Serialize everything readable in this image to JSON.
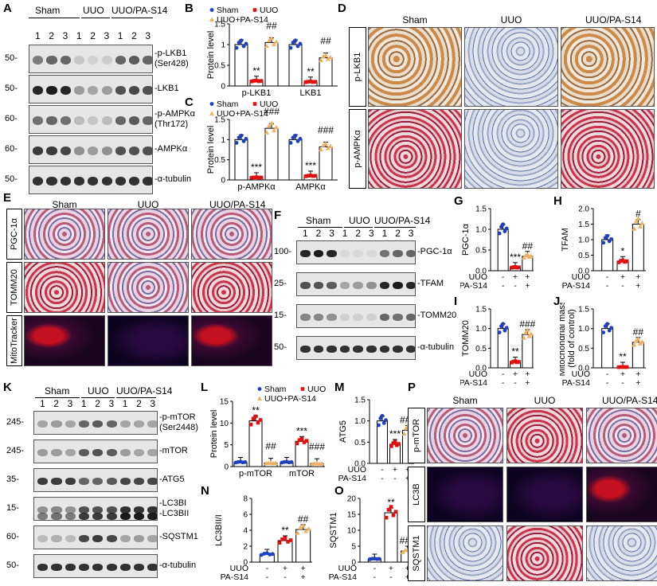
{
  "panels": {
    "A": {
      "letter": "A",
      "groups": [
        "Sham",
        "UUO",
        "UUO/PA-S14"
      ],
      "lanes": [
        "1",
        "2",
        "3",
        "1",
        "2",
        "3",
        "1",
        "2",
        "3"
      ],
      "rows": [
        {
          "mw": "50-",
          "label": "-p-LKB1",
          "label2": "(Ser428)"
        },
        {
          "mw": "50-",
          "label": "-LKB1",
          "label2": ""
        },
        {
          "mw": "60-",
          "label": "-p-AMPKα",
          "label2": "(Thr172)"
        },
        {
          "mw": "60-",
          "label": "-AMPKα",
          "label2": ""
        },
        {
          "mw": "50-",
          "label": "-α-tubulin",
          "label2": ""
        }
      ]
    },
    "B": {
      "letter": "B"
    },
    "C": {
      "letter": "C"
    },
    "D": {
      "letter": "D",
      "cols": [
        "Sham",
        "UUO",
        "UUO/PA-S14"
      ],
      "rows": [
        "p-LKB1",
        "p-AMPKα"
      ]
    },
    "E": {
      "letter": "E",
      "cols": [
        "Sham",
        "UUO",
        "UUO/PA-S14"
      ],
      "rows": [
        "PGC-1α",
        "TOMM20",
        "MitoTracker"
      ]
    },
    "F": {
      "letter": "F",
      "groups": [
        "Sham",
        "UUO",
        "UUO/PA-S14"
      ],
      "lanes": [
        "1",
        "2",
        "3",
        "1",
        "2",
        "3",
        "1",
        "2",
        "3"
      ],
      "rows": [
        {
          "mw": "100-",
          "label": "-PGC-1α"
        },
        {
          "mw": "25-",
          "label": "-TFAM"
        },
        {
          "mw": "15-",
          "label": "-TOMM20"
        },
        {
          "mw": "50-",
          "label": "-α-tubulin"
        }
      ]
    },
    "G": {
      "letter": "G"
    },
    "H": {
      "letter": "H"
    },
    "I": {
      "letter": "I"
    },
    "J": {
      "letter": "J"
    },
    "K": {
      "letter": "K",
      "groups": [
        "Sham",
        "UUO",
        "UUO/PA-S14"
      ],
      "lanes": [
        "1",
        "2",
        "3",
        "1",
        "2",
        "3",
        "1",
        "2",
        "3"
      ],
      "rows": [
        {
          "mw": "245-",
          "label": "-p-mTOR",
          "label2": "(Ser2448)"
        },
        {
          "mw": "245-",
          "label": "-mTOR",
          "label2": ""
        },
        {
          "mw": "35-",
          "label": "-ATG5",
          "label2": ""
        },
        {
          "mw": "15-",
          "label": "-LC3BI",
          "label2": "-LC3BII"
        },
        {
          "mw": "60-",
          "label": "-SQSTM1",
          "label2": ""
        },
        {
          "mw": "50-",
          "label": "-α-tubulin",
          "label2": ""
        }
      ]
    },
    "L": {
      "letter": "L"
    },
    "M": {
      "letter": "M"
    },
    "N": {
      "letter": "N"
    },
    "O": {
      "letter": "O"
    },
    "P": {
      "letter": "P",
      "cols": [
        "Sham",
        "UUO",
        "UUO/PA-S14"
      ],
      "rows": [
        "p-mTOR",
        "LC3B",
        "SQSTM1"
      ]
    }
  },
  "chart_data": [
    {
      "panel": "B",
      "type": "bar",
      "ylabel": "Protein level",
      "categories": [
        "p-LKB1",
        "LKB1"
      ],
      "ylim": [
        0,
        1.5
      ],
      "yticks": [
        0,
        0.5,
        1.0,
        1.5
      ],
      "legend": [
        "Sham",
        "UUO",
        "UUO+PA-S14"
      ],
      "series": [
        {
          "name": "Sham",
          "color": "#1f3fbf",
          "values": [
            1.0,
            1.0
          ]
        },
        {
          "name": "UUO",
          "color": "#e01010",
          "values": [
            0.12,
            0.1
          ]
        },
        {
          "name": "UUO+PA-S14",
          "color": "#f0b060",
          "values": [
            1.05,
            0.68
          ]
        }
      ],
      "annotations": [
        {
          "category": "p-LKB1",
          "series": "UUO",
          "text": "**"
        },
        {
          "category": "p-LKB1",
          "series": "UUO+PA-S14",
          "text": "##"
        },
        {
          "category": "LKB1",
          "series": "UUO",
          "text": "**"
        },
        {
          "category": "LKB1",
          "series": "UUO+PA-S14",
          "text": "##"
        }
      ]
    },
    {
      "panel": "C",
      "type": "bar",
      "ylabel": "Protein level",
      "categories": [
        "p-AMPKα",
        "AMPKα"
      ],
      "ylim": [
        0,
        1.5
      ],
      "yticks": [
        0,
        0.5,
        1.0,
        1.5
      ],
      "legend": [
        "Sham",
        "UUO",
        "UUO+PA-S14"
      ],
      "series": [
        {
          "name": "Sham",
          "color": "#1f3fbf",
          "values": [
            1.0,
            1.0
          ]
        },
        {
          "name": "UUO",
          "color": "#e01010",
          "values": [
            0.06,
            0.1
          ]
        },
        {
          "name": "UUO+PA-S14",
          "color": "#f0b060",
          "values": [
            1.28,
            0.82
          ]
        }
      ],
      "annotations": [
        {
          "category": "p-AMPKα",
          "series": "UUO",
          "text": "***"
        },
        {
          "category": "p-AMPKα",
          "series": "UUO+PA-S14",
          "text": "###"
        },
        {
          "category": "AMPKα",
          "series": "UUO",
          "text": "***"
        },
        {
          "category": "AMPKα",
          "series": "UUO+PA-S14",
          "text": "###"
        }
      ]
    },
    {
      "panel": "G",
      "type": "bar",
      "ylabel": "PGC-1α",
      "ylim": [
        0,
        1.5
      ],
      "yticks": [
        0.0,
        0.5,
        1.0,
        1.5
      ],
      "uuo": [
        "-",
        "+",
        "+"
      ],
      "pas14": [
        "-",
        "-",
        "+"
      ],
      "values": [
        1.0,
        0.08,
        0.35
      ],
      "colors": [
        "#1f3fbf",
        "#e01010",
        "#f0b060"
      ],
      "annotations": [
        "",
        "***",
        "##"
      ]
    },
    {
      "panel": "H",
      "type": "bar",
      "ylabel": "TFAM",
      "ylim": [
        0,
        2.0
      ],
      "yticks": [
        0.0,
        0.5,
        1.0,
        1.5,
        2.0
      ],
      "uuo": [
        "-",
        "+",
        "+"
      ],
      "pas14": [
        "-",
        "-",
        "+"
      ],
      "values": [
        1.0,
        0.3,
        1.5
      ],
      "colors": [
        "#1f3fbf",
        "#e01010",
        "#f0b060"
      ],
      "annotations": [
        "",
        "*",
        "#"
      ]
    },
    {
      "panel": "I",
      "type": "bar",
      "ylabel": "TOMM20",
      "ylim": [
        0,
        1.5
      ],
      "yticks": [
        0.0,
        0.5,
        1.0,
        1.5
      ],
      "uuo": [
        "-",
        "+",
        "+"
      ],
      "pas14": [
        "-",
        "-",
        "+"
      ],
      "values": [
        1.0,
        0.15,
        0.85
      ],
      "colors": [
        "#1f3fbf",
        "#e01010",
        "#f0b060"
      ],
      "annotations": [
        "",
        "**",
        "###"
      ]
    },
    {
      "panel": "J",
      "type": "bar",
      "ylabel": "Mitochondrial mass",
      "ylabel2": "(fold of control)",
      "ylim": [
        0,
        1.5
      ],
      "yticks": [
        0.0,
        0.5,
        1.0,
        1.5
      ],
      "uuo": [
        "-",
        "+",
        "+"
      ],
      "pas14": [
        "-",
        "-",
        "+"
      ],
      "values": [
        1.0,
        0.02,
        0.65
      ],
      "colors": [
        "#1f3fbf",
        "#e01010",
        "#f0b060"
      ],
      "annotations": [
        "",
        "**",
        "##"
      ]
    },
    {
      "panel": "L",
      "type": "bar",
      "ylabel": "Protein level",
      "categories": [
        "p-mTOR",
        "mTOR"
      ],
      "ylim": [
        0,
        15
      ],
      "yticks": [
        0,
        5,
        10,
        15
      ],
      "legend": [
        "Sham",
        "UUO",
        "UUO+PA-S14"
      ],
      "series": [
        {
          "name": "Sham",
          "color": "#1f3fbf",
          "values": [
            1.0,
            1.0
          ]
        },
        {
          "name": "UUO",
          "color": "#e01010",
          "values": [
            10.5,
            5.8
          ]
        },
        {
          "name": "UUO+PA-S14",
          "color": "#f0b060",
          "values": [
            0.8,
            0.7
          ]
        }
      ],
      "annotations": [
        {
          "category": "p-mTOR",
          "series": "UUO",
          "text": "**"
        },
        {
          "category": "p-mTOR",
          "series": "UUO+PA-S14",
          "text": "##"
        },
        {
          "category": "mTOR",
          "series": "UUO",
          "text": "***"
        },
        {
          "category": "mTOR",
          "series": "UUO+PA-S14",
          "text": "###"
        }
      ]
    },
    {
      "panel": "M",
      "type": "bar",
      "ylabel": "ATG5",
      "ylim": [
        0,
        1.5
      ],
      "yticks": [
        0.0,
        0.5,
        1.0,
        1.5
      ],
      "uuo": [
        "-",
        "+",
        "+"
      ],
      "pas14": [
        "-",
        "-",
        "+"
      ],
      "values": [
        1.0,
        0.45,
        0.78
      ],
      "colors": [
        "#1f3fbf",
        "#e01010",
        "#f0b060"
      ],
      "annotations": [
        "",
        "***",
        "###"
      ]
    },
    {
      "panel": "N",
      "type": "bar",
      "ylabel": "LC3BII/I",
      "ylim": [
        0,
        8
      ],
      "yticks": [
        0,
        2,
        4,
        6,
        8
      ],
      "uuo": [
        "-",
        "+",
        "+"
      ],
      "pas14": [
        "-",
        "-",
        "+"
      ],
      "values": [
        1.0,
        2.7,
        4.1
      ],
      "colors": [
        "#1f3fbf",
        "#e01010",
        "#f0b060"
      ],
      "annotations": [
        "",
        "**",
        "##"
      ]
    },
    {
      "panel": "O",
      "type": "bar",
      "ylabel": "SQSTM1",
      "ylim": [
        0,
        20
      ],
      "yticks": [
        0,
        5,
        10,
        15,
        20
      ],
      "uuo": [
        "-",
        "+",
        "+"
      ],
      "pas14": [
        "-",
        "-",
        "+"
      ],
      "values": [
        1.0,
        15.5,
        3.5
      ],
      "colors": [
        "#1f3fbf",
        "#e01010",
        "#f0b060"
      ],
      "annotations": [
        "",
        "**",
        "###"
      ]
    }
  ],
  "labels": {
    "uuo": "UUO",
    "pas14": "PA-S14"
  }
}
